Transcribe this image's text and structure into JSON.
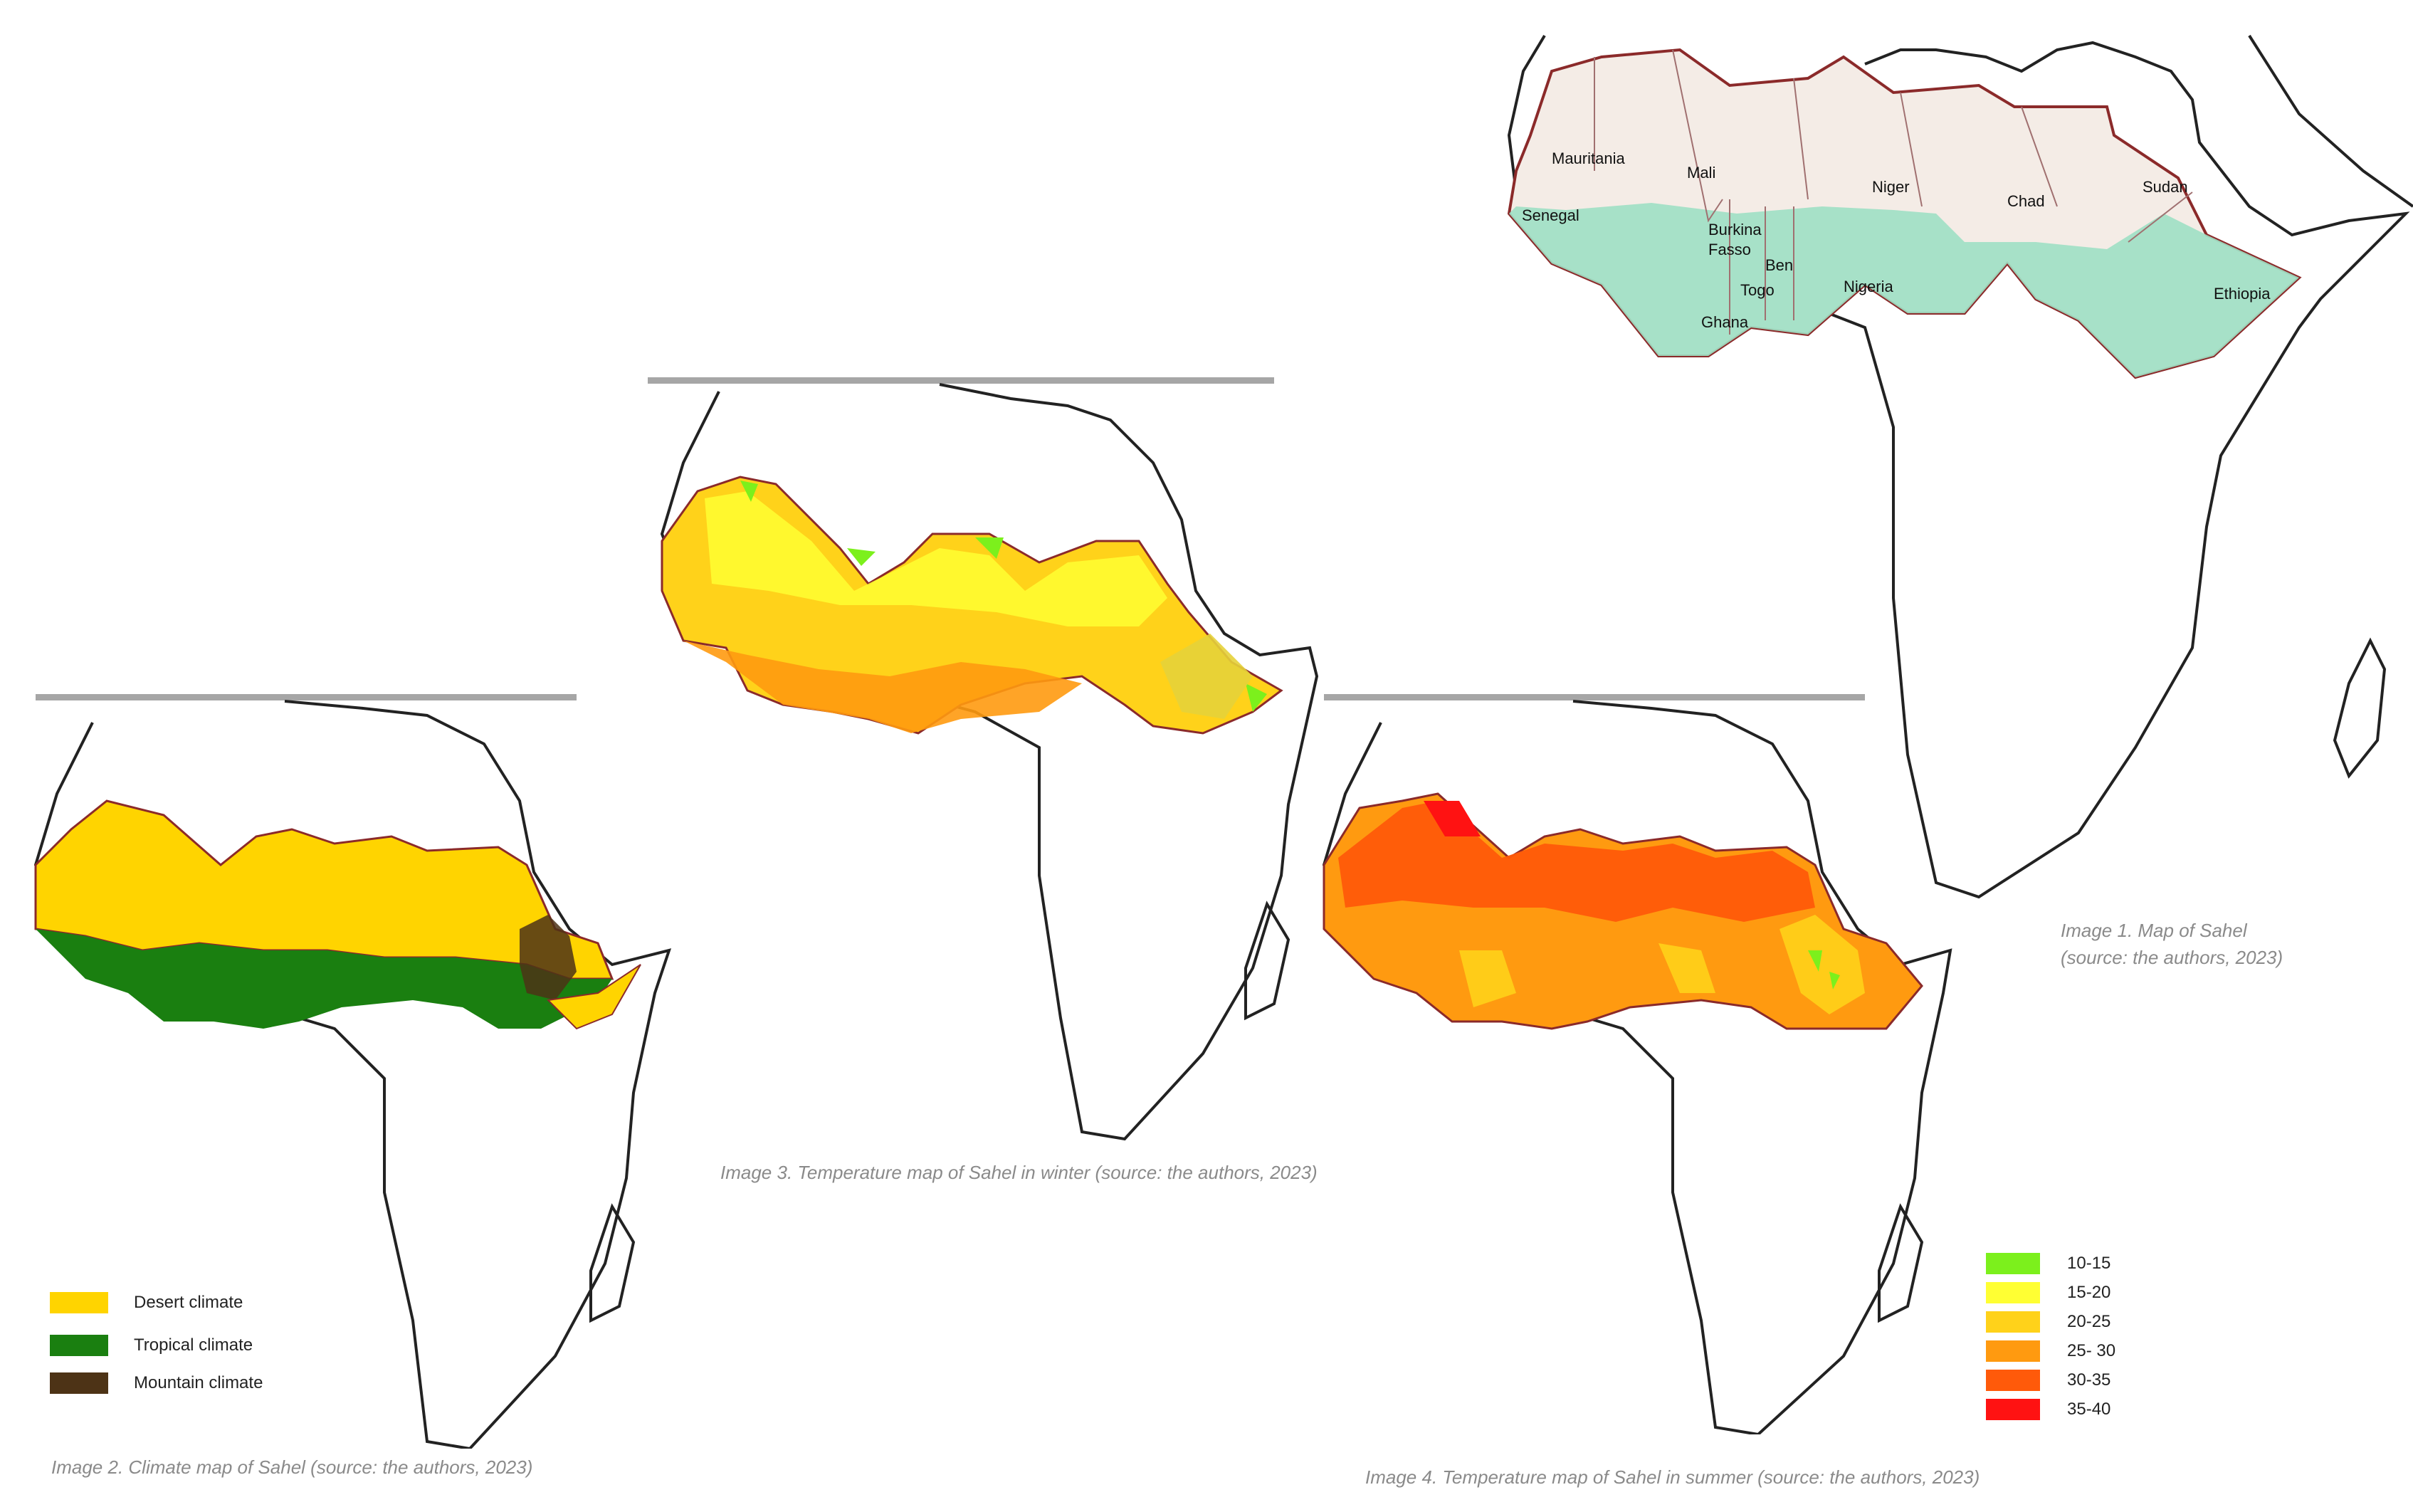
{
  "captions": {
    "image1": "Image 1. Map of Sahel\n(source: the authors, 2023)",
    "image1_line1": "Image 1. Map of Sahel",
    "image1_line2": "(source: the authors, 2023)",
    "image2": "Image 2. Climate map of Sahel (source: the authors, 2023)",
    "image3": "Image 3. Temperature map of Sahel in winter (source: the authors, 2023)",
    "image4": "Image 4. Temperature map of Sahel in summer (source: the authors, 2023)"
  },
  "countries": {
    "mauritania": "Mauritania",
    "mali": "Mali",
    "niger": "Niger",
    "chad": "Chad",
    "sudan": "Sudan",
    "senegal": "Senegal",
    "burkina": "Burkina",
    "fasso": "Fasso",
    "benin": "Ben",
    "togo": "Togo",
    "ghana": "Ghana",
    "nigeria": "Nigeria",
    "ethiopia": "Ethiopia"
  },
  "climate_legend": [
    {
      "label": "Desert climate",
      "color": "#ffd400"
    },
    {
      "label": "Tropical climate",
      "color": "#1a7f10"
    },
    {
      "label": "Mountain climate",
      "color": "#4d3316"
    }
  ],
  "temperature_legend": [
    {
      "label": "10-15",
      "color": "#7cf01c"
    },
    {
      "label": "15-20",
      "color": "#ffff33"
    },
    {
      "label": "20-25",
      "color": "#ffd21a"
    },
    {
      "label": "25- 30",
      "color": "#ff9a10"
    },
    {
      "label": "30-35",
      "color": "#ff5a0a"
    },
    {
      "label": "35-40",
      "color": "#ff1212"
    }
  ],
  "colors": {
    "sahel_base": "#f4ece6",
    "sahel_border": "#8b2a2a",
    "green_zone": "#9fe0c4",
    "outline": "#222222",
    "rule": "#a6a6a6"
  }
}
